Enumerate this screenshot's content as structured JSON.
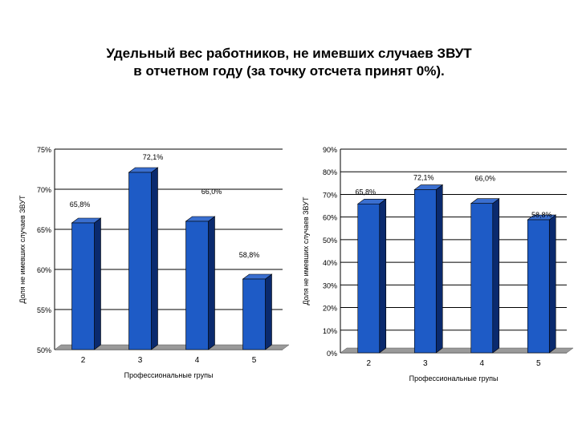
{
  "title": {
    "line1": "Удельный вес работников, не имевших случаев ЗВУТ",
    "line2": "в отчетном году (за точку отсчета принят 0%)."
  },
  "colors": {
    "bar_front": "#1E5BC6",
    "bar_side": "#0A2A6E",
    "bar_top": "#3A6FD0",
    "floor": "#9A9A9A",
    "grid": "#000000"
  },
  "chart_data": [
    {
      "type": "bar",
      "categories": [
        "2",
        "3",
        "4",
        "5"
      ],
      "values": [
        65.8,
        72.1,
        66.0,
        58.8
      ],
      "data_labels": [
        "65,8%",
        "72,1%",
        "66,0%",
        "58,8%"
      ],
      "ylim": [
        50,
        75
      ],
      "yticks": [
        50,
        55,
        60,
        65,
        70,
        75
      ],
      "ytick_labels": [
        "50%",
        "55%",
        "60%",
        "65%",
        "70%",
        "75%"
      ],
      "xlabel": "Профессиональные групы",
      "ylabel": "Доля не имевших случаев ЗВУТ",
      "grid": true,
      "legend": "none"
    },
    {
      "type": "bar",
      "categories": [
        "2",
        "3",
        "4",
        "5"
      ],
      "values": [
        65.8,
        72.1,
        66.0,
        58.8
      ],
      "data_labels": [
        "65,8%",
        "72,1%",
        "66,0%",
        "58,8%"
      ],
      "ylim": [
        0,
        90
      ],
      "yticks": [
        0,
        10,
        20,
        30,
        40,
        50,
        60,
        70,
        80,
        90
      ],
      "ytick_labels": [
        "0%",
        "10%",
        "20%",
        "30%",
        "40%",
        "50%",
        "60%",
        "70%",
        "80%",
        "90%"
      ],
      "xlabel": "Профессиональные групы",
      "ylabel": "Доля не имевших случаев ЗВУТ",
      "grid": true,
      "legend": "none"
    }
  ]
}
